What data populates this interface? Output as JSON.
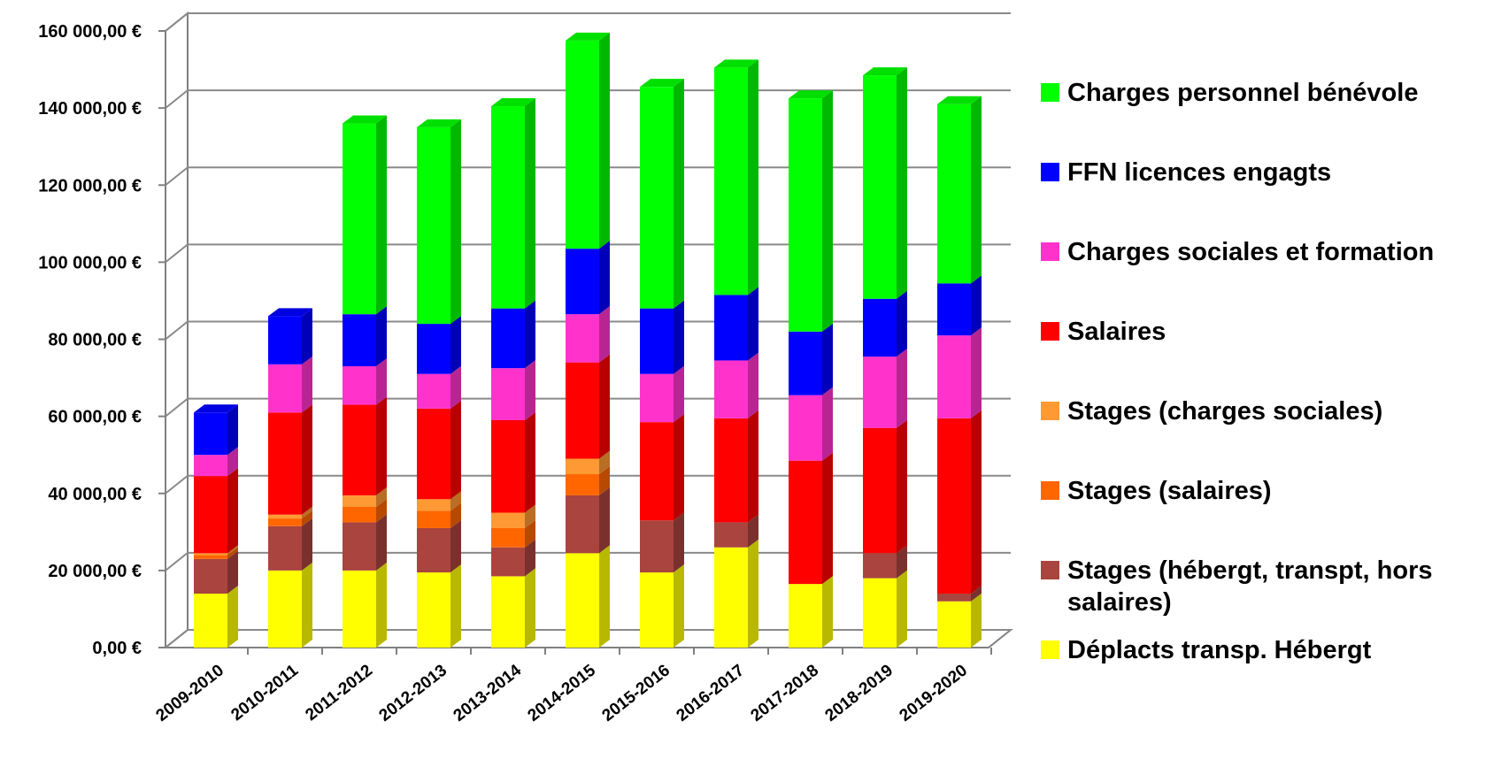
{
  "chart_data": {
    "type": "bar",
    "stacked": true,
    "three_d": true,
    "title": "",
    "xlabel": "",
    "ylabel": "",
    "ylim": [
      0,
      160000
    ],
    "grid": true,
    "legend_position": "right",
    "y_ticks": [
      "0,00 €",
      "20 000,00 €",
      "40 000,00 €",
      "60 000,00 €",
      "80 000,00 €",
      "100 000,00 €",
      "120 000,00 €",
      "140 000,00 €",
      "160 000,00 €"
    ],
    "categories": [
      "2009-2010",
      "2010-2011",
      "2011-2012",
      "2012-2013",
      "2013-2014",
      "2014-2015",
      "2015-2016",
      "2016-2017",
      "2017-2018",
      "2018-2019",
      "2019-2020"
    ],
    "series": [
      {
        "name": "Déplacts transp. Hébergt",
        "color": "#ffff00",
        "values": [
          14000,
          20000,
          20000,
          19500,
          18500,
          24500,
          19500,
          26000,
          16500,
          18000,
          12000
        ]
      },
      {
        "name": "Stages (hébergt, transpt, hors salaires)",
        "color": "#a9443f",
        "values": [
          9000,
          11500,
          12500,
          11500,
          7500,
          15000,
          13500,
          6500,
          0,
          6500,
          2000
        ]
      },
      {
        "name": "Stages (salaires)",
        "color": "#ff6600",
        "values": [
          1000,
          2000,
          4000,
          4500,
          5000,
          5500,
          0,
          0,
          0,
          0,
          0
        ]
      },
      {
        "name": "Stages (charges sociales)",
        "color": "#ff9933",
        "values": [
          500,
          1000,
          3000,
          3000,
          4000,
          4000,
          0,
          0,
          0,
          0,
          0
        ]
      },
      {
        "name": "Salaires",
        "color": "#ff0000",
        "values": [
          20000,
          26500,
          23500,
          23500,
          24000,
          25000,
          25500,
          27000,
          32000,
          32500,
          45500
        ]
      },
      {
        "name": "Charges sociales et formation",
        "color": "#ff33cc",
        "values": [
          5500,
          12500,
          10000,
          9000,
          13500,
          12500,
          12500,
          15000,
          17000,
          18500,
          21500
        ]
      },
      {
        "name": "FFN licences engagts",
        "color": "#0000ff",
        "values": [
          11000,
          12500,
          13500,
          13000,
          15500,
          17000,
          17000,
          17000,
          16500,
          15000,
          13500
        ]
      },
      {
        "name": "Charges personnel bénévole",
        "color": "#00ff00",
        "values": [
          0,
          0,
          49500,
          51000,
          52500,
          54000,
          57500,
          59000,
          60500,
          58000,
          46500
        ]
      }
    ]
  }
}
